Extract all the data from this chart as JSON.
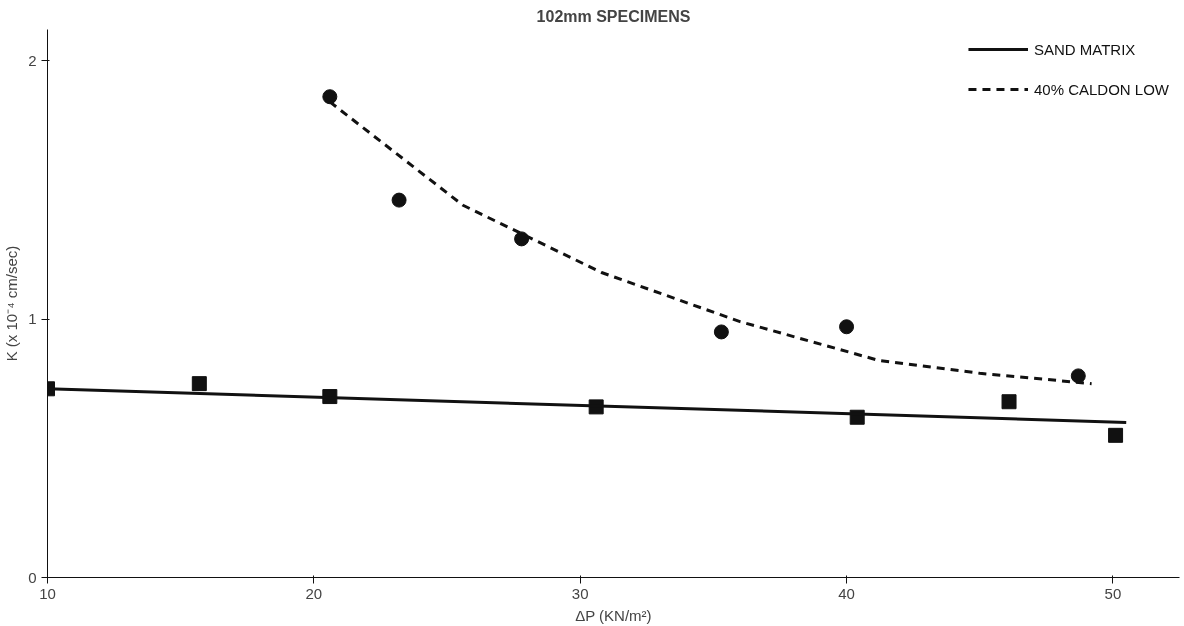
{
  "chart_data": {
    "type": "scatter",
    "title": "102mm SPECIMENS",
    "xlabel": "ΔP (KN/m²)",
    "ylabel": "K (x 10⁻⁴ cm/sec)",
    "xlim": [
      10,
      52.5
    ],
    "ylim": [
      0,
      2.12
    ],
    "xticks": [
      10,
      20,
      30,
      40,
      50
    ],
    "yticks": [
      0,
      1,
      2
    ],
    "grid": false,
    "legend": "top right",
    "series": [
      {
        "marker": "square",
        "color": "#111111",
        "x": [
          10,
          15.7,
          20.6,
          30.6,
          40.4,
          46.1,
          50.1
        ],
        "values": [
          0.73,
          0.75,
          0.7,
          0.66,
          0.62,
          0.68,
          0.55
        ]
      },
      {
        "marker": "circle",
        "color": "#111111",
        "x": [
          20.6,
          23.2,
          27.8,
          35.3,
          40.0,
          48.7
        ],
        "values": [
          1.86,
          1.46,
          1.31,
          0.95,
          0.97,
          0.78
        ]
      },
      {
        "type": "line",
        "name": "SAND MATRIX",
        "line_style": "solid",
        "color": "#111111",
        "x": [
          10,
          50.5
        ],
        "values": [
          0.73,
          0.6
        ]
      },
      {
        "type": "line",
        "name": "40% CALDON LOW",
        "line_style": "dashed",
        "color": "#111111",
        "x": [
          20.6,
          25.6,
          30.8,
          36.0,
          41.2,
          45,
          49.2
        ],
        "values": [
          1.84,
          1.44,
          1.18,
          0.99,
          0.84,
          0.79,
          0.75
        ]
      }
    ]
  }
}
